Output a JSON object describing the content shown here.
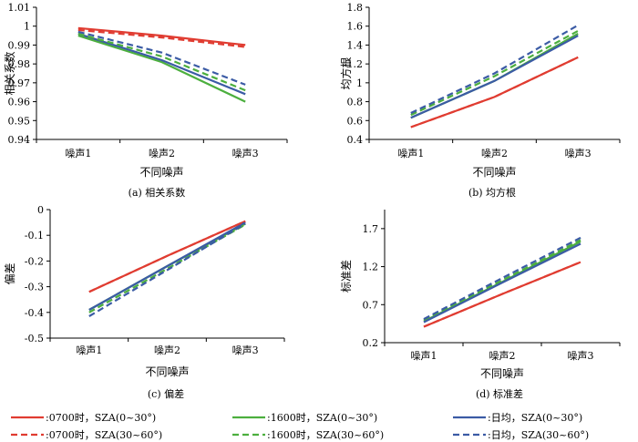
{
  "colors": {
    "c0700": "#e03c31",
    "c1600": "#4caf3e",
    "daily": "#3b5ba5"
  },
  "legend": [
    {
      "label": ":0700时，SZA(0~30°)",
      "color": "#e03c31",
      "dash": false
    },
    {
      "label": ":1600时，SZA(0~30°)",
      "color": "#4caf3e",
      "dash": false
    },
    {
      "label": ":日均，SZA(0~30°)",
      "color": "#3b5ba5",
      "dash": false
    },
    {
      "label": ":0700时，SZA(30~60°)",
      "color": "#e03c31",
      "dash": true
    },
    {
      "label": ":1600时，SZA(30~60°)",
      "color": "#4caf3e",
      "dash": true
    },
    {
      "label": ":日均，SZA(30~60°)",
      "color": "#3b5ba5",
      "dash": true
    }
  ],
  "chart_data": [
    {
      "type": "line",
      "caption": "(a) 相关系数",
      "ylabel": "相关系数",
      "xlabel": "不同噪声",
      "categories": [
        "噪声1",
        "噪声2",
        "噪声3"
      ],
      "ylim": [
        0.94,
        1.01
      ],
      "yticks": [
        0.94,
        0.95,
        0.96,
        0.97,
        0.98,
        0.99,
        1,
        1.01
      ],
      "series": [
        {
          "name": ":0700时，SZA(0~30°)",
          "values": [
            0.999,
            0.995,
            0.99
          ]
        },
        {
          "name": ":0700时，SZA(30~60°)",
          "values": [
            0.998,
            0.994,
            0.989
          ]
        },
        {
          "name": ":1600时，SZA(0~30°)",
          "values": [
            0.995,
            0.981,
            0.96
          ]
        },
        {
          "name": ":1600时，SZA(30~60°)",
          "values": [
            0.996,
            0.984,
            0.966
          ]
        },
        {
          "name": ":日均，SZA(0~30°)",
          "values": [
            0.996,
            0.982,
            0.964
          ]
        },
        {
          "name": ":日均，SZA(30~60°)",
          "values": [
            0.997,
            0.986,
            0.969
          ]
        }
      ]
    },
    {
      "type": "line",
      "caption": "(b) 均方根",
      "ylabel": "均方根",
      "xlabel": "不同噪声",
      "categories": [
        "噪声1",
        "噪声2",
        "噪声3"
      ],
      "ylim": [
        0.4,
        1.8
      ],
      "yticks": [
        0.4,
        0.6,
        0.8,
        1,
        1.2,
        1.4,
        1.6,
        1.8
      ],
      "series": [
        {
          "name": ":0700时，SZA(0~30°)",
          "values": [
            0.53,
            0.85,
            1.27
          ]
        },
        {
          "name": ":0700时，SZA(30~60°)",
          "values": [
            0.53,
            0.85,
            1.27
          ]
        },
        {
          "name": ":1600时，SZA(0~30°)",
          "values": [
            0.63,
            1.02,
            1.52
          ]
        },
        {
          "name": ":1600时，SZA(30~60°)",
          "values": [
            0.66,
            1.07,
            1.55
          ]
        },
        {
          "name": ":日均，SZA(0~30°)",
          "values": [
            0.63,
            1.02,
            1.5
          ]
        },
        {
          "name": ":日均，SZA(30~60°)",
          "values": [
            0.68,
            1.1,
            1.61
          ]
        }
      ]
    },
    {
      "type": "line",
      "caption": "(c) 偏差",
      "ylabel": "偏差",
      "xlabel": "不同噪声",
      "categories": [
        "噪声1",
        "噪声2",
        "噪声3"
      ],
      "ylim": [
        -0.5,
        0
      ],
      "yticks": [
        -0.5,
        -0.4,
        -0.3,
        -0.2,
        -0.1,
        0
      ],
      "series": [
        {
          "name": ":0700时，SZA(0~30°)",
          "values": [
            -0.32,
            -0.18,
            -0.045
          ]
        },
        {
          "name": ":0700时，SZA(30~60°)",
          "values": [
            -0.32,
            -0.18,
            -0.045
          ]
        },
        {
          "name": ":1600时，SZA(0~30°)",
          "values": [
            -0.39,
            -0.22,
            -0.055
          ]
        },
        {
          "name": ":1600时，SZA(30~60°)",
          "values": [
            -0.4,
            -0.23,
            -0.058
          ]
        },
        {
          "name": ":日均，SZA(0~30°)",
          "values": [
            -0.39,
            -0.22,
            -0.05
          ]
        },
        {
          "name": ":日均，SZA(30~60°)",
          "values": [
            -0.415,
            -0.235,
            -0.055
          ]
        }
      ]
    },
    {
      "type": "line",
      "caption": "(d) 标准差",
      "ylabel": "标准差",
      "xlabel": "不同噪声",
      "categories": [
        "噪声1",
        "噪声2",
        "噪声3"
      ],
      "ylim": [
        0.2,
        1.95
      ],
      "yticks": [
        0.2,
        0.7,
        1.2,
        1.7
      ],
      "series": [
        {
          "name": ":0700时，SZA(0~30°)",
          "values": [
            0.41,
            0.84,
            1.26
          ]
        },
        {
          "name": ":0700时，SZA(30~60°)",
          "values": [
            0.41,
            0.84,
            1.26
          ]
        },
        {
          "name": ":1600时，SZA(0~30°)",
          "values": [
            0.48,
            1.0,
            1.53
          ]
        },
        {
          "name": ":1600时，SZA(30~60°)",
          "values": [
            0.5,
            1.02,
            1.55
          ]
        },
        {
          "name": ":日均，SZA(0~30°)",
          "values": [
            0.47,
            0.99,
            1.5
          ]
        },
        {
          "name": ":日均，SZA(30~60°)",
          "values": [
            0.51,
            1.05,
            1.58
          ]
        }
      ]
    }
  ]
}
